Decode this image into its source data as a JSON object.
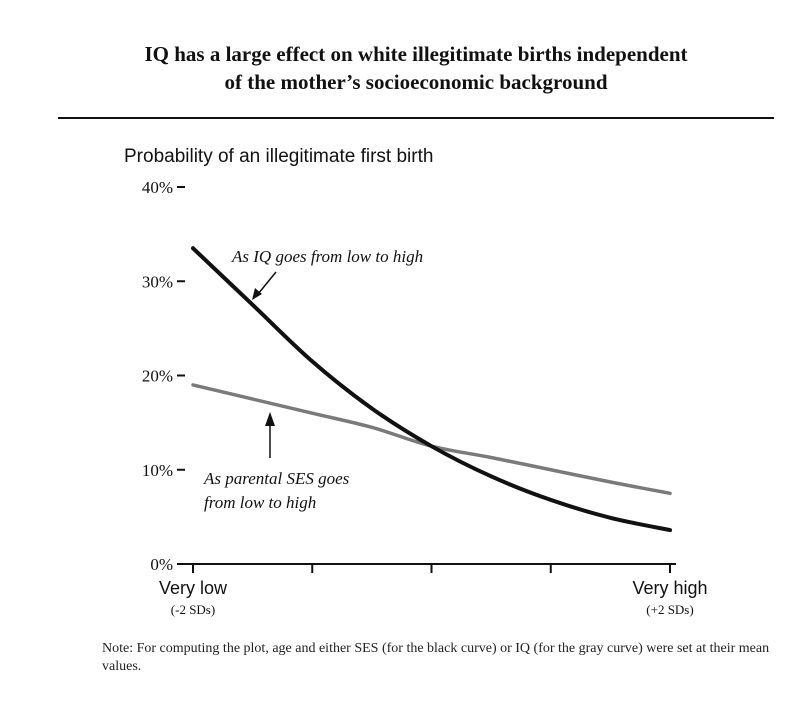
{
  "title": {
    "line1": "IQ has a large effect on white illegitimate births independent",
    "line2": "of the mother’s socioeconomic background"
  },
  "chart_data": {
    "type": "line",
    "ylabel": "Probability of an illegitimate first birth",
    "ylim": [
      0,
      40
    ],
    "y_ticks": [
      "0%",
      "10%",
      "20%",
      "30%",
      "40%"
    ],
    "y_tick_values": [
      0,
      10,
      20,
      30,
      40
    ],
    "xlim": [
      -2,
      2
    ],
    "x_tick_values": [
      -2,
      -1,
      0,
      1,
      2
    ],
    "x_tick_labels": [
      {
        "value": -2,
        "main": "Very low",
        "sub": "(-2 SDs)"
      },
      {
        "value": 2,
        "main": "Very high",
        "sub": "(+2 SDs)"
      }
    ],
    "grid": false,
    "series": [
      {
        "name": "As IQ goes from low to high",
        "color": "#111111",
        "x": [
          -2,
          -1.5,
          -1,
          -0.5,
          0,
          0.5,
          1,
          1.5,
          2
        ],
        "y": [
          33.5,
          27.5,
          21.5,
          16.5,
          12.5,
          9.3,
          6.8,
          4.9,
          3.6
        ]
      },
      {
        "name": "As parental SES goes from low to high",
        "color": "#7a7a7a",
        "x": [
          -2,
          -1.5,
          -1,
          -0.5,
          0,
          0.5,
          1,
          1.5,
          2
        ],
        "y": [
          19,
          17.5,
          16.0,
          14.5,
          12.5,
          11.3,
          10.0,
          8.7,
          7.5
        ]
      }
    ],
    "annotations": [
      {
        "target": "black",
        "lines": [
          "As IQ goes from low to high"
        ]
      },
      {
        "target": "gray",
        "lines": [
          "As parental SES goes",
          "from low to high"
        ]
      }
    ]
  },
  "note": "Note: For computing the plot, age and either SES (for the black curve) or IQ (for the gray curve) were set at their mean values."
}
